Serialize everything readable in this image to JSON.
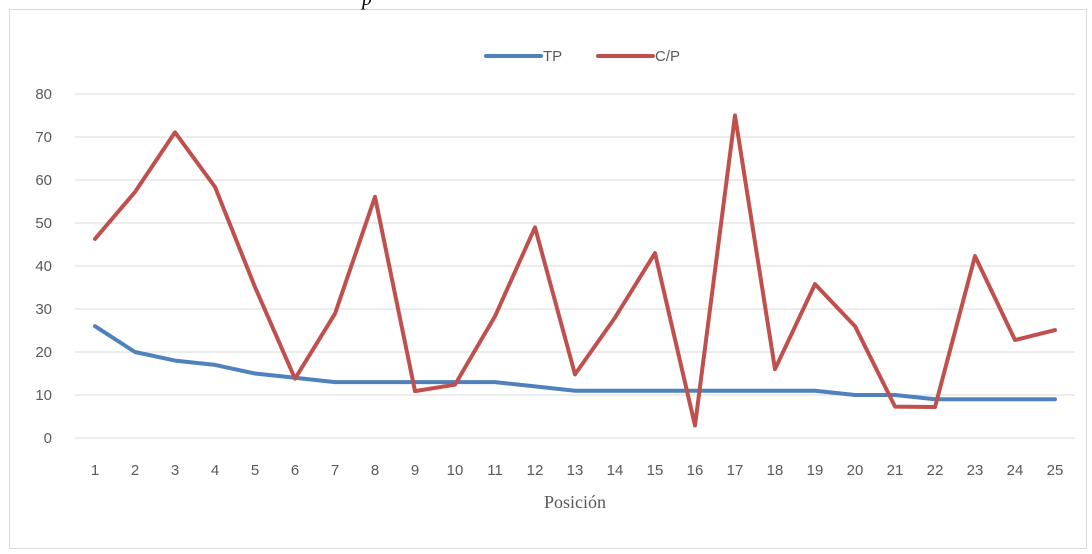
{
  "title_fragment": "p",
  "chart_data": {
    "type": "line",
    "title": "",
    "xlabel": "Posición",
    "ylabel": "",
    "ylim": [
      0,
      80
    ],
    "yticks": [
      "0",
      "10",
      "20",
      "30",
      "40",
      "50",
      "60",
      "70",
      "80"
    ],
    "grid": true,
    "legend_position": "top-center",
    "categories": [
      "1",
      "2",
      "3",
      "4",
      "5",
      "6",
      "7",
      "8",
      "9",
      "10",
      "11",
      "12",
      "13",
      "14",
      "15",
      "16",
      "17",
      "18",
      "19",
      "20",
      "21",
      "22",
      "23",
      "24",
      "25"
    ],
    "series": [
      {
        "name": "TP",
        "color": "#4f81bd",
        "values": [
          26,
          20,
          18,
          17,
          15,
          14,
          13,
          13,
          13,
          13,
          13,
          12,
          11,
          11,
          11,
          11,
          11,
          11,
          11,
          10,
          10,
          9,
          9,
          9,
          9
        ]
      },
      {
        "name": "C/P",
        "color": "#c0504d",
        "values": [
          46.3,
          57.2,
          71.1,
          58.4,
          35.1,
          13.8,
          28.9,
          56.1,
          10.9,
          12.4,
          28.3,
          49.0,
          14.8,
          28.0,
          43.0,
          2.9,
          75.0,
          16.0,
          35.8,
          26.0,
          7.3,
          7.2,
          42.3,
          22.8,
          25.1
        ]
      }
    ]
  }
}
